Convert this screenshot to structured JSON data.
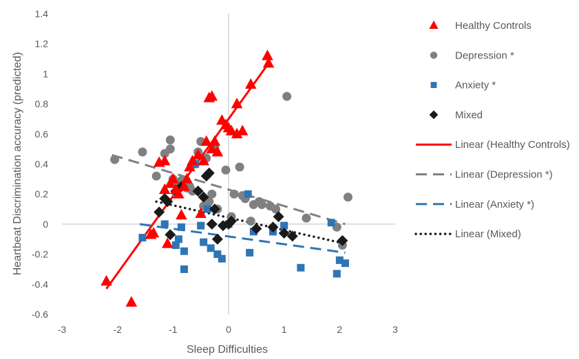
{
  "chart_data": {
    "type": "scatter",
    "xlabel": "Sleep Difficulties",
    "ylabel": "Heartbeat Discrimination accuracy (predicted)",
    "xlim": [
      -3,
      3
    ],
    "ylim": [
      -0.6,
      1.4
    ],
    "x_ticks": [
      -3,
      -2,
      -1,
      0,
      1,
      2,
      3
    ],
    "y_ticks": [
      -0.6,
      -0.4,
      -0.2,
      0,
      0.2,
      0.4,
      0.6,
      0.8,
      1,
      1.2,
      1.4
    ],
    "x_tick_labels": [
      "-3",
      "-2",
      "-1",
      "0",
      "1",
      "2",
      "3"
    ],
    "y_tick_labels": [
      "-0.6",
      "-0.4",
      "-0.2",
      "0",
      "0.2",
      "0.4",
      "0.6",
      "0.8",
      "1",
      "1.2",
      "1.4"
    ],
    "grid": false,
    "legend_position": "right",
    "series": [
      {
        "name": "Healthy Controls",
        "marker": "triangle",
        "color": "#ff0000",
        "points": [
          [
            -2.2,
            -0.38
          ],
          [
            -1.75,
            -0.52
          ],
          [
            -1.4,
            -0.07
          ],
          [
            -1.35,
            -0.06
          ],
          [
            -1.25,
            0.41
          ],
          [
            -1.15,
            0.42
          ],
          [
            -1.15,
            0.23
          ],
          [
            -1.05,
            0.27
          ],
          [
            -1.1,
            -0.13
          ],
          [
            -1.0,
            0.3
          ],
          [
            -0.95,
            0.23
          ],
          [
            -0.9,
            0.2
          ],
          [
            -0.85,
            0.06
          ],
          [
            -0.8,
            0.25
          ],
          [
            -0.75,
            0.3
          ],
          [
            -0.7,
            0.38
          ],
          [
            -0.65,
            0.42
          ],
          [
            -0.55,
            0.46
          ],
          [
            -0.5,
            0.07
          ],
          [
            -0.45,
            0.42
          ],
          [
            -0.4,
            0.55
          ],
          [
            -0.35,
            0.84
          ],
          [
            -0.3,
            0.85
          ],
          [
            -0.3,
            0.5
          ],
          [
            -0.25,
            0.55
          ],
          [
            -0.2,
            0.48
          ],
          [
            -0.12,
            0.69
          ],
          [
            -0.05,
            0.66
          ],
          [
            0.0,
            0.64
          ],
          [
            0.05,
            0.62
          ],
          [
            0.15,
            0.8
          ],
          [
            0.15,
            0.6
          ],
          [
            0.25,
            0.62
          ],
          [
            0.4,
            0.93
          ],
          [
            0.7,
            1.12
          ],
          [
            0.72,
            1.07
          ]
        ]
      },
      {
        "name": "Depression *",
        "marker": "circle",
        "color": "#808080",
        "points": [
          [
            -2.05,
            0.43
          ],
          [
            -1.55,
            0.48
          ],
          [
            -1.3,
            0.32
          ],
          [
            -1.15,
            0.47
          ],
          [
            -1.05,
            0.5
          ],
          [
            -1.05,
            0.56
          ],
          [
            -1.0,
            0.3
          ],
          [
            -0.95,
            0.21
          ],
          [
            -0.9,
            0.27
          ],
          [
            -0.85,
            0.29
          ],
          [
            -0.75,
            0.24
          ],
          [
            -0.7,
            0.25
          ],
          [
            -0.65,
            0.22
          ],
          [
            -0.6,
            0.4
          ],
          [
            -0.55,
            0.48
          ],
          [
            -0.5,
            0.55
          ],
          [
            -0.45,
            0.12
          ],
          [
            -0.4,
            0.44
          ],
          [
            -0.35,
            0.15
          ],
          [
            -0.3,
            0.2
          ],
          [
            -0.25,
            0.51
          ],
          [
            -0.2,
            0.1
          ],
          [
            -0.05,
            0.36
          ],
          [
            0.05,
            0.05
          ],
          [
            0.1,
            0.2
          ],
          [
            0.2,
            0.38
          ],
          [
            0.25,
            0.19
          ],
          [
            0.3,
            0.17
          ],
          [
            0.4,
            0.02
          ],
          [
            0.45,
            0.13
          ],
          [
            0.55,
            0.15
          ],
          [
            0.6,
            0.13
          ],
          [
            0.75,
            0.12
          ],
          [
            0.85,
            0.1
          ],
          [
            1.05,
            0.85
          ],
          [
            1.4,
            0.04
          ],
          [
            1.95,
            -0.02
          ],
          [
            2.05,
            -0.14
          ],
          [
            2.15,
            0.18
          ]
        ]
      },
      {
        "name": "Anxiety *",
        "marker": "square",
        "color": "#2e75b6",
        "points": [
          [
            -1.55,
            -0.09
          ],
          [
            -1.15,
            0.0
          ],
          [
            -0.95,
            -0.14
          ],
          [
            -0.9,
            -0.1
          ],
          [
            -0.85,
            -0.02
          ],
          [
            -0.8,
            -0.3
          ],
          [
            -0.8,
            -0.18
          ],
          [
            -0.6,
            0.4
          ],
          [
            -0.5,
            -0.01
          ],
          [
            -0.45,
            -0.12
          ],
          [
            -0.38,
            0.1
          ],
          [
            -0.32,
            -0.16
          ],
          [
            -0.2,
            -0.2
          ],
          [
            -0.12,
            -0.23
          ],
          [
            0.0,
            0.0
          ],
          [
            0.35,
            0.2
          ],
          [
            0.38,
            -0.19
          ],
          [
            0.45,
            -0.05
          ],
          [
            0.8,
            -0.05
          ],
          [
            1.0,
            -0.01
          ],
          [
            1.3,
            -0.29
          ],
          [
            1.85,
            0.01
          ],
          [
            1.95,
            -0.33
          ],
          [
            2.0,
            -0.24
          ],
          [
            2.1,
            -0.26
          ]
        ]
      },
      {
        "name": "Mixed",
        "marker": "diamond",
        "color": "#1a1a1a",
        "points": [
          [
            -1.25,
            0.08
          ],
          [
            -1.15,
            0.17
          ],
          [
            -1.1,
            0.15
          ],
          [
            -1.05,
            -0.07
          ],
          [
            -0.95,
            0.22
          ],
          [
            -0.85,
            0.25
          ],
          [
            -0.55,
            0.22
          ],
          [
            -0.45,
            0.18
          ],
          [
            -0.4,
            0.32
          ],
          [
            -0.35,
            0.34
          ],
          [
            -0.3,
            0.0
          ],
          [
            -0.25,
            0.1
          ],
          [
            -0.2,
            -0.1
          ],
          [
            -0.1,
            -0.01
          ],
          [
            0.0,
            0.0
          ],
          [
            0.05,
            0.02
          ],
          [
            0.5,
            -0.03
          ],
          [
            0.8,
            -0.02
          ],
          [
            0.9,
            0.05
          ],
          [
            1.0,
            -0.06
          ],
          [
            1.15,
            -0.08
          ],
          [
            2.05,
            -0.11
          ]
        ]
      }
    ],
    "trendlines": [
      {
        "name": "Linear (Healthy Controls)",
        "color": "#ff0000",
        "style": "solid",
        "x": [
          -2.2,
          0.72
        ],
        "y": [
          -0.43,
          1.07
        ]
      },
      {
        "name": "Linear (Depression *)",
        "color": "#808080",
        "style": "dashed",
        "x": [
          -2.1,
          2.1
        ],
        "y": [
          0.46,
          0.0
        ]
      },
      {
        "name": "Linear (Anxiety *)",
        "color": "#2e75b6",
        "style": "dashed",
        "x": [
          -1.6,
          2.1
        ],
        "y": [
          0.0,
          -0.19
        ]
      },
      {
        "name": "Linear (Mixed)",
        "color": "#1a1a1a",
        "style": "dotted",
        "x": [
          -1.3,
          2.1
        ],
        "y": [
          0.15,
          -0.13
        ]
      }
    ],
    "legend": [
      {
        "label": "Healthy Controls",
        "kind": "marker",
        "marker": "triangle",
        "color": "#ff0000"
      },
      {
        "label": "Depression *",
        "kind": "marker",
        "marker": "circle",
        "color": "#808080"
      },
      {
        "label": "Anxiety *",
        "kind": "marker",
        "marker": "square",
        "color": "#2e75b6"
      },
      {
        "label": "Mixed",
        "kind": "marker",
        "marker": "diamond",
        "color": "#1a1a1a"
      },
      {
        "label": "Linear (Healthy Controls)",
        "kind": "line",
        "style": "solid",
        "color": "#ff0000"
      },
      {
        "label": "Linear (Depression *)",
        "kind": "line",
        "style": "dashed",
        "color": "#808080"
      },
      {
        "label": "Linear (Anxiety *)",
        "kind": "line",
        "style": "dashed",
        "color": "#2e75b6"
      },
      {
        "label": "Linear (Mixed)",
        "kind": "line",
        "style": "dotted",
        "color": "#1a1a1a"
      }
    ]
  }
}
